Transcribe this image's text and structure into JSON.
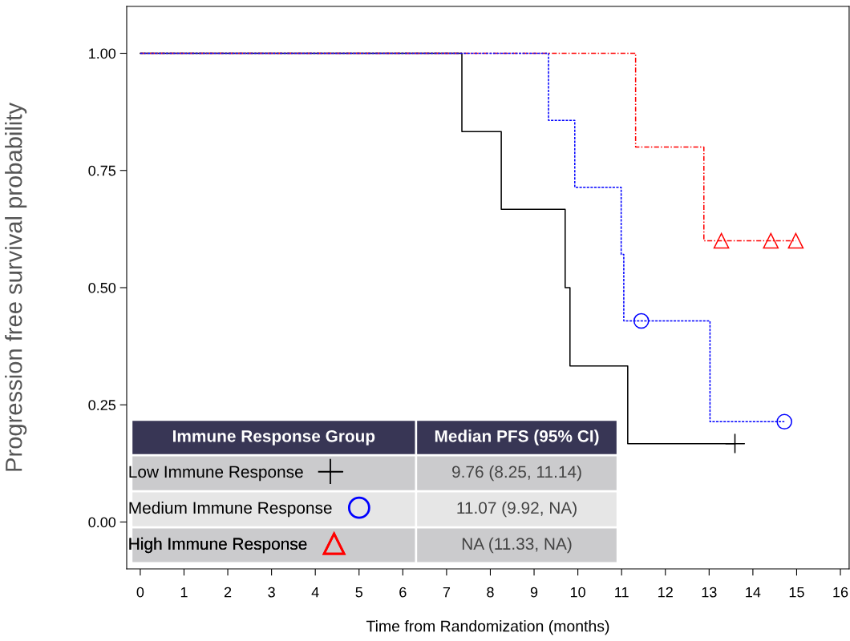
{
  "chart_data": {
    "type": "step",
    "xlabel": "Time from Randomization (months)",
    "ylabel": "Progression free survival probability",
    "xlim": [
      -0.31,
      16.2
    ],
    "ylim": [
      -0.1,
      1.1
    ],
    "xticks": [
      0,
      1,
      2,
      3,
      4,
      5,
      6,
      7,
      8,
      9,
      10,
      11,
      12,
      13,
      14,
      15,
      16
    ],
    "yticks": [
      {
        "value": 0,
        "label": "0.00"
      },
      {
        "value": 0.25,
        "label": "0.25"
      },
      {
        "value": 0.5,
        "label": "0.50"
      },
      {
        "value": 0.75,
        "label": "0.75"
      },
      {
        "value": 1,
        "label": "1.00"
      }
    ],
    "grid": false,
    "legend": "bottom left",
    "legend_title": "Immune Response Group",
    "annotations": [
      "Median PFS (95% CI)",
      "9.76 (8.25, 11.14)",
      "11.07 (9.92, NA)",
      "NA (11.33, NA)"
    ],
    "series": [
      {
        "color": "#000000",
        "line_style": "solid",
        "x": [
          0,
          7.35,
          8.25,
          9.71,
          9.82,
          11.14,
          13.59
        ],
        "values": [
          1,
          0.833,
          0.667,
          0.5,
          0.333,
          0.167,
          0.167
        ]
      },
      {
        "color": "#0000ff",
        "line_style": "dashed",
        "x": [
          0,
          9.33,
          9.93,
          10.99,
          11.05,
          13.02,
          14.72
        ],
        "values": [
          1,
          0.857,
          0.714,
          0.571,
          0.429,
          0.214,
          0.214
        ]
      },
      {
        "color": "#ff0000",
        "line_style": "dashdot",
        "x": [
          0,
          11.32,
          12.88,
          14.98
        ],
        "values": [
          1,
          0.8,
          0.6,
          0.6
        ]
      },
      {
        "name": "Low Immune Response",
        "type": "scatter",
        "color": "#000000",
        "marker": "cross",
        "x": [
          13.59
        ],
        "values": [
          0.167
        ]
      },
      {
        "name": "Medium Immune Response",
        "type": "scatter",
        "color": "#0000ff",
        "marker": "circle",
        "x": [
          11.45,
          14.72
        ],
        "values": [
          0.429,
          0.214
        ]
      },
      {
        "name": "High Immune Response",
        "type": "scatter",
        "color": "#ff0000",
        "marker": "triangle",
        "x": [
          13.28,
          14.41,
          14.98
        ],
        "values": [
          0.6,
          0.6,
          0.6
        ]
      }
    ]
  }
}
